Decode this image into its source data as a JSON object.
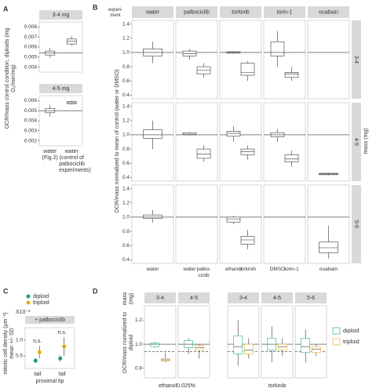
{
  "chart_data": [
    {
      "type": "box",
      "label": "A",
      "strip": "3-4 mg",
      "ylabel": "OCR/mass control condition, diploids (mg O₂/min/mg)",
      "categories": [
        null,
        null
      ],
      "color": "#555555",
      "boxes": [
        [
          0.0049,
          0.0052,
          0.0054,
          0.0056,
          0.0059
        ],
        [
          0.0061,
          0.0063,
          0.0066,
          0.0068,
          0.0071
        ]
      ],
      "hline": 0.0054,
      "ylim": [
        0.0035,
        0.0085
      ],
      "yticks": [
        0.004,
        0.005,
        0.006,
        0.007,
        0.008
      ]
    },
    {
      "type": "box",
      "strip": "4-5 mg",
      "categories": [
        "water (Fig.2)",
        "water (control of palbociclib experiments)"
      ],
      "color": "#555555",
      "boxes": [
        [
          0.0044,
          0.0048,
          0.005,
          0.0052,
          0.0056
        ],
        [
          0.0056,
          0.0057,
          0.0058,
          0.0059,
          0.006
        ]
      ],
      "hline": 0.005,
      "ylim": [
        0.0015,
        0.0065
      ],
      "yticks": [
        0.002,
        0.003,
        0.004,
        0.005,
        0.006
      ]
    },
    {
      "type": "box-grid",
      "label": "B",
      "corner_label": "experi-ment",
      "ylabel": "OCR/mass normalized to mean of control (water or DMSO)",
      "row_title": "mass (mg)",
      "columns": [
        "water",
        "palbociclib",
        "torkinib",
        "torin-1",
        "ouabain"
      ],
      "rows": [
        "3-4",
        "4-5",
        "5-6"
      ],
      "xlabels": [
        [
          "water",
          null
        ],
        [
          "water",
          "palbo-ciclib"
        ],
        [
          "ethanol",
          "torkinib"
        ],
        [
          "DMSO",
          "torin-1"
        ],
        [
          null,
          "ouabain"
        ]
      ],
      "color": "#555555",
      "cells": [
        [
          [
            [
              0.85,
              0.95,
              1.0,
              1.05,
              1.15
            ],
            null
          ],
          [
            [
              0.9,
              0.95,
              0.98,
              1.02,
              1.05
            ],
            [
              0.65,
              0.7,
              0.75,
              0.8,
              0.85
            ]
          ],
          [
            [
              0.98,
              0.99,
              1.0,
              1.01,
              1.02
            ],
            [
              0.6,
              0.68,
              0.72,
              0.85,
              0.88
            ]
          ],
          [
            [
              0.8,
              0.95,
              1.0,
              1.15,
              1.3
            ],
            [
              0.6,
              0.65,
              0.7,
              0.72,
              0.8
            ]
          ],
          [
            null,
            null
          ]
        ],
        [
          [
            [
              0.8,
              0.95,
              1.0,
              1.07,
              1.2
            ],
            null
          ],
          [
            [
              0.99,
              1.0,
              1.01,
              1.03,
              1.04
            ],
            [
              0.62,
              0.67,
              0.73,
              0.8,
              0.85
            ]
          ],
          [
            [
              0.9,
              0.98,
              1.02,
              1.05,
              1.12
            ],
            [
              0.65,
              0.72,
              0.76,
              0.8,
              0.85
            ]
          ],
          [
            [
              0.9,
              0.97,
              1.0,
              1.03,
              1.08
            ],
            [
              0.55,
              0.62,
              0.66,
              0.72,
              0.78
            ]
          ],
          [
            null,
            [
              0.43,
              0.44,
              0.45,
              0.46,
              0.47
            ]
          ]
        ],
        [
          [
            [
              0.92,
              0.98,
              1.0,
              1.03,
              1.1
            ],
            null
          ],
          [
            null,
            null
          ],
          [
            [
              0.9,
              0.93,
              0.97,
              1.0,
              1.02
            ],
            [
              0.55,
              0.62,
              0.68,
              0.73,
              0.82
            ]
          ],
          [
            null,
            null
          ],
          [
            null,
            [
              0.42,
              0.5,
              0.57,
              0.65,
              0.88
            ]
          ]
        ]
      ],
      "hline": 1,
      "ylim": [
        0.35,
        1.45
      ],
      "yticks": [
        0.4,
        0.6,
        0.8,
        {
          "value": 1,
          "label": "1.0"
        },
        1.2,
        1.4
      ]
    },
    {
      "type": "errorbar",
      "label": "C",
      "ylabel": "mitotic cell density (µm⁻²) mean +/- SD",
      "scale_label": "X10⁻³",
      "strip": "+ palbociclib",
      "categories": [
        "tail",
        "tail"
      ],
      "xlabel": "proximal tip",
      "series": [
        {
          "name": "diploid",
          "color": "#1b9e77",
          "values": [
            0.35,
            0.42
          ],
          "errors": [
            0.08,
            0.1
          ]
        },
        {
          "name": "triploid",
          "color": "#e6ab02",
          "values": [
            0.62,
            0.8
          ],
          "errors": [
            0.2,
            0.3
          ]
        }
      ],
      "annotations": [
        "n.s.",
        "n.s."
      ],
      "ylim": [
        0.1,
        1.4
      ],
      "yticks": [
        0.5,
        {
          "value": 1,
          "label": "1.0"
        }
      ]
    },
    {
      "type": "box-facets",
      "label": "D",
      "ylabel": "OCR/mass normalized to diploid",
      "strip_title": "mass (mg)",
      "legend": [
        {
          "name": "diploid",
          "color": "#3fbfa0"
        },
        {
          "name": "triploid",
          "color": "#f0b840"
        }
      ],
      "groups": [
        {
          "name": "ethanol0.025%",
          "facets": [
            {
              "strip": "3-4",
              "boxes": [
                [
                  0.97,
                  0.98,
                  1.0,
                  1.01,
                  1.02
                ],
                [
                  0.85,
                  0.86,
                  0.87,
                  0.88,
                  0.93
                ]
              ]
            },
            {
              "strip": "4-5",
              "boxes": [
                [
                  0.92,
                  0.97,
                  1.0,
                  1.03,
                  1.05
                ],
                [
                  0.88,
                  0.95,
                  0.97,
                  0.99,
                  1.0
                ]
              ]
            }
          ]
        },
        {
          "name": "torkinib",
          "facets": [
            {
              "strip": "3-4",
              "boxes": [
                [
                  0.82,
                  0.92,
                  0.98,
                  1.07,
                  1.2
                ],
                [
                  0.88,
                  0.92,
                  0.95,
                  1.0,
                  1.05
                ]
              ]
            },
            {
              "strip": "4-5",
              "boxes": [
                [
                  0.85,
                  0.95,
                  1.0,
                  1.05,
                  1.15
                ],
                [
                  0.9,
                  0.95,
                  0.98,
                  1.0,
                  1.05
                ]
              ]
            },
            {
              "strip": "5-6",
              "boxes": [
                [
                  0.85,
                  0.93,
                  0.98,
                  1.05,
                  1.12
                ],
                [
                  0.9,
                  0.93,
                  0.96,
                  0.98,
                  1.0
                ]
              ]
            }
          ]
        }
      ],
      "hline": 1,
      "dashed_line": 0.94,
      "ylim": [
        0.72,
        1.32
      ],
      "yticks": [
        0.8,
        {
          "value": 1,
          "label": "1.0"
        },
        1.2
      ]
    }
  ]
}
